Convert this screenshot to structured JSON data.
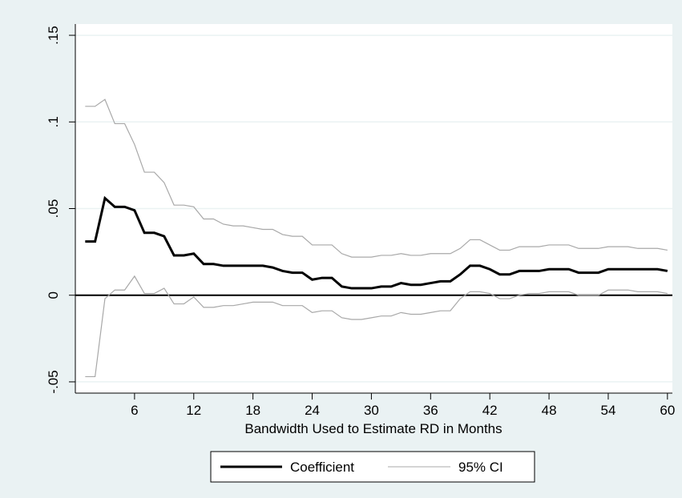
{
  "chart_data": {
    "type": "line",
    "title": "",
    "xlabel": "Bandwidth Used to Estimate RD in Months",
    "ylabel": "",
    "xlim": [
      0,
      60.5
    ],
    "ylim": [
      -0.05,
      0.15
    ],
    "x_ticks": [
      6,
      12,
      18,
      24,
      30,
      36,
      42,
      48,
      54,
      60
    ],
    "x_tick_labels": [
      "6",
      "12",
      "18",
      "24",
      "30",
      "36",
      "42",
      "48",
      "54",
      "60"
    ],
    "y_ticks": [
      -0.05,
      0,
      0.05,
      0.1,
      0.15
    ],
    "y_tick_labels": [
      "-.05",
      "0",
      ".05",
      ".1",
      ".15"
    ],
    "grid": true,
    "reference_line": 0,
    "legend_position": "bottom",
    "x": [
      1,
      2,
      3,
      4,
      5,
      6,
      7,
      8,
      9,
      10,
      11,
      12,
      13,
      14,
      15,
      16,
      17,
      18,
      19,
      20,
      21,
      22,
      23,
      24,
      25,
      26,
      27,
      28,
      29,
      30,
      31,
      32,
      33,
      34,
      35,
      36,
      37,
      38,
      39,
      40,
      41,
      42,
      43,
      44,
      45,
      46,
      47,
      48,
      49,
      50,
      51,
      52,
      53,
      54,
      55,
      56,
      57,
      58,
      59,
      60
    ],
    "series": [
      {
        "name": "Coefficient",
        "color": "#000000",
        "values": [
          0.031,
          0.031,
          0.056,
          0.051,
          0.051,
          0.049,
          0.036,
          0.036,
          0.034,
          0.023,
          0.023,
          0.024,
          0.018,
          0.018,
          0.017,
          0.017,
          0.017,
          0.017,
          0.017,
          0.016,
          0.014,
          0.013,
          0.013,
          0.009,
          0.01,
          0.01,
          0.005,
          0.004,
          0.004,
          0.004,
          0.005,
          0.005,
          0.007,
          0.006,
          0.006,
          0.007,
          0.008,
          0.008,
          0.012,
          0.017,
          0.017,
          0.015,
          0.012,
          0.012,
          0.014,
          0.014,
          0.014,
          0.015,
          0.015,
          0.015,
          0.013,
          0.013,
          0.013,
          0.015,
          0.015,
          0.015,
          0.015,
          0.015,
          0.015,
          0.014
        ]
      },
      {
        "name": "95% CI",
        "color": "#a8a8a8",
        "values": [
          0.109,
          0.109,
          0.113,
          0.099,
          0.099,
          0.087,
          0.071,
          0.071,
          0.065,
          0.052,
          0.052,
          0.051,
          0.044,
          0.044,
          0.041,
          0.04,
          0.04,
          0.039,
          0.038,
          0.038,
          0.035,
          0.034,
          0.034,
          0.029,
          0.029,
          0.029,
          0.024,
          0.022,
          0.022,
          0.022,
          0.023,
          0.023,
          0.024,
          0.023,
          0.023,
          0.024,
          0.024,
          0.024,
          0.027,
          0.032,
          0.032,
          0.029,
          0.026,
          0.026,
          0.028,
          0.028,
          0.028,
          0.029,
          0.029,
          0.029,
          0.027,
          0.027,
          0.027,
          0.028,
          0.028,
          0.028,
          0.027,
          0.027,
          0.027,
          0.026
        ]
      },
      {
        "name": "95% CI lower",
        "color": "#a8a8a8",
        "values": [
          -0.047,
          -0.047,
          -0.002,
          0.003,
          0.003,
          0.011,
          0.001,
          0.001,
          0.004,
          -0.005,
          -0.005,
          -0.001,
          -0.007,
          -0.007,
          -0.006,
          -0.006,
          -0.005,
          -0.004,
          -0.004,
          -0.004,
          -0.006,
          -0.006,
          -0.006,
          -0.01,
          -0.009,
          -0.009,
          -0.013,
          -0.014,
          -0.014,
          -0.013,
          -0.012,
          -0.012,
          -0.01,
          -0.011,
          -0.011,
          -0.01,
          -0.009,
          -0.009,
          -0.002,
          0.002,
          0.002,
          0.001,
          -0.002,
          -0.002,
          0.0,
          0.001,
          0.001,
          0.002,
          0.002,
          0.002,
          0.0,
          0.0,
          0.0,
          0.003,
          0.003,
          0.003,
          0.002,
          0.002,
          0.002,
          0.001
        ]
      }
    ],
    "legend": [
      {
        "label": "Coefficient",
        "color": "#000000",
        "weight": "bold"
      },
      {
        "label": "95% CI",
        "color": "#a8a8a8",
        "weight": "thin"
      }
    ]
  }
}
